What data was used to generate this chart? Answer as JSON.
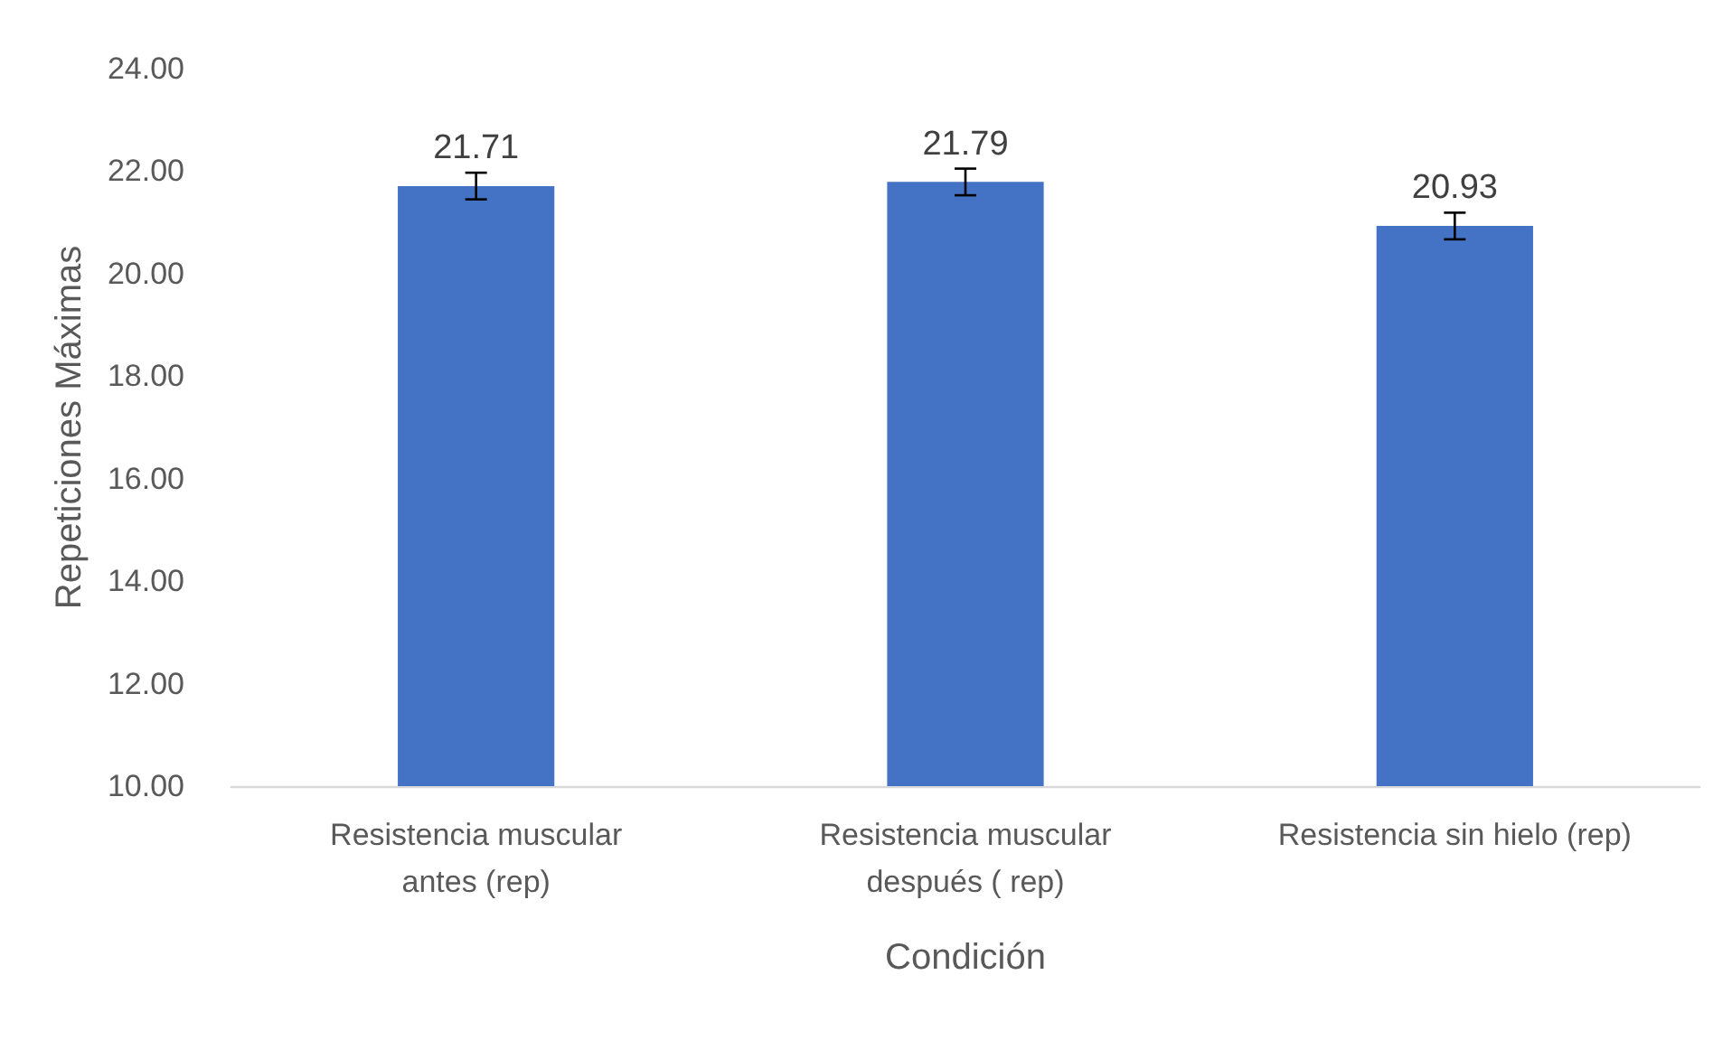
{
  "chart_data": {
    "type": "bar",
    "xlabel": "Condición",
    "ylabel": "Repeticiones Máximas",
    "categories": [
      "Resistencia muscular\nantes (rep)",
      "Resistencia muscular\ndespués ( rep)",
      "Resistencia sin hielo (rep)"
    ],
    "values": [
      21.71,
      21.79,
      20.93
    ],
    "errors": [
      0.26,
      0.26,
      0.26
    ],
    "color": "#4472c4",
    "ylim": [
      10,
      24
    ],
    "yticks": [
      {
        "value": 10,
        "label": "10.00"
      },
      {
        "value": 12,
        "label": "12.00"
      },
      {
        "value": 14,
        "label": "14.00"
      },
      {
        "value": 16,
        "label": "16.00"
      },
      {
        "value": 18,
        "label": "18.00"
      },
      {
        "value": 20,
        "label": "20.00"
      },
      {
        "value": 22,
        "label": "22.00"
      },
      {
        "value": 24,
        "label": "24.00"
      }
    ],
    "grid": false,
    "data_labels": true
  }
}
